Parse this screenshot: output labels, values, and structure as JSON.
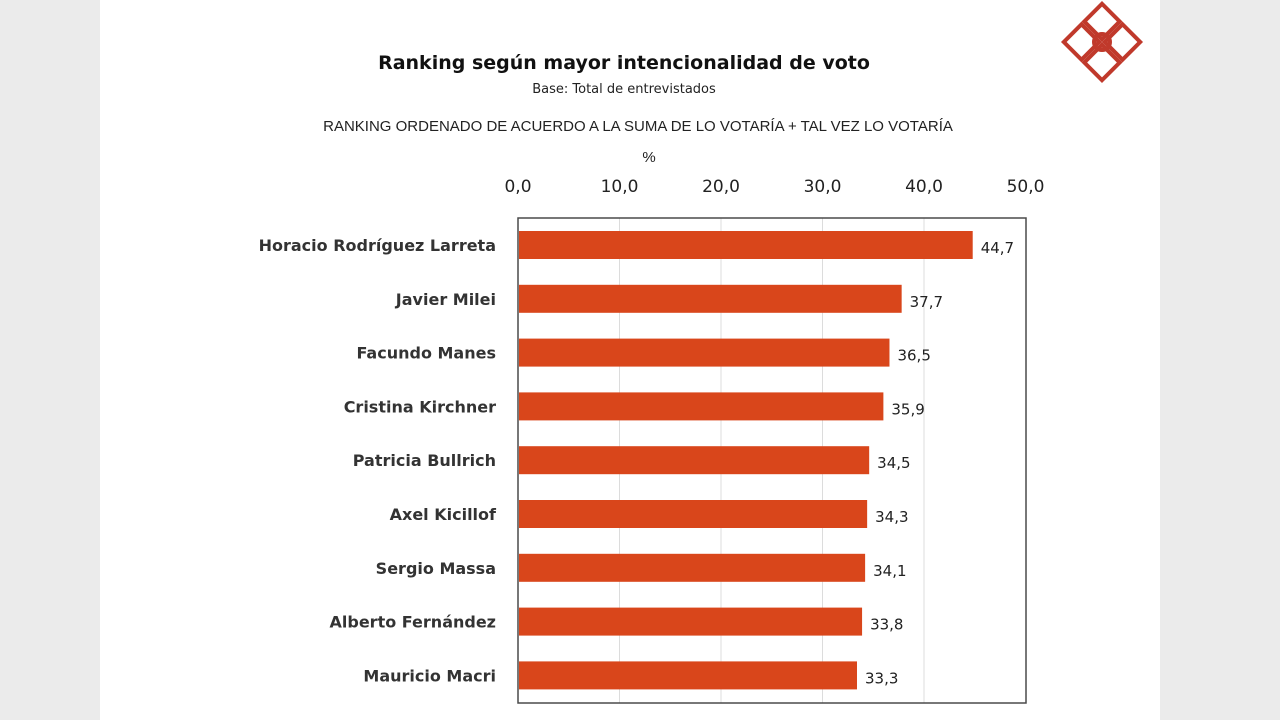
{
  "header": {
    "title": "Ranking según mayor intencionalidad de voto",
    "subtitle": "Base: Total de entrevistados",
    "note": "RANKING ORDENADO DE ACUERDO A LA SUMA DE LO VOTARÍA  + TAL VEZ LO VOTARÍA",
    "unit": "%"
  },
  "logo": {
    "icon": "diamond-logo-icon",
    "color": "#c0392b"
  },
  "chart_data": {
    "type": "bar",
    "orientation": "horizontal",
    "categories": [
      "Horacio Rodríguez Larreta",
      "Javier Milei",
      "Facundo Manes",
      "Cristina Kirchner",
      "Patricia Bullrich",
      "Axel Kicillof",
      "Sergio Massa",
      "Alberto Fernández",
      "Mauricio Macri"
    ],
    "values": [
      44.7,
      37.7,
      36.5,
      35.9,
      34.5,
      34.3,
      34.1,
      33.8,
      33.3
    ],
    "value_labels": [
      "44,7",
      "37,7",
      "36,5",
      "35,9",
      "34,5",
      "34,3",
      "34,1",
      "33,8",
      "33,3"
    ],
    "xlim": [
      0,
      50
    ],
    "xticks": [
      0,
      10,
      20,
      30,
      40,
      50
    ],
    "xtick_labels": [
      "0,0",
      "10,0",
      "20,0",
      "30,0",
      "40,0",
      "50,0"
    ],
    "axis_position": "top",
    "grid": true,
    "bar_color": "#d9461b"
  }
}
